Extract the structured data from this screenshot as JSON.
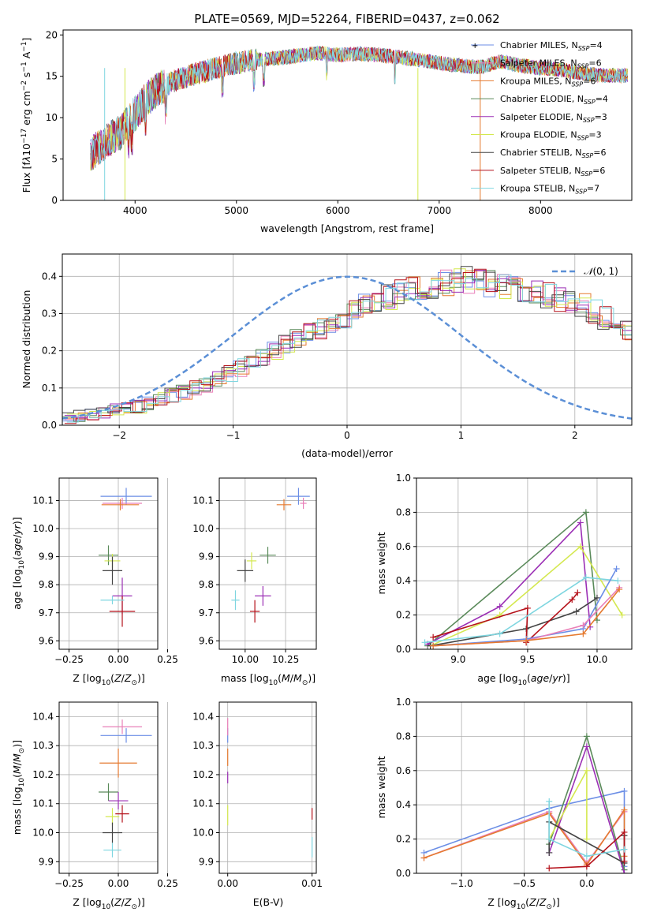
{
  "figure": {
    "title": "PLATE=0569, MJD=52264, FIBERID=0437, z=0.062"
  },
  "chart_data": [
    {
      "type": "line",
      "panel": "spectrum",
      "xlabel": "wavelength [Angstrom, rest frame]",
      "ylabel": "Flux [f_λ 10^-17 erg cm^-2 s^-1 A^-1]",
      "xlim": [
        3290,
        8900
      ],
      "ylim": [
        0,
        20.6
      ],
      "xticks": [
        4000,
        5000,
        6000,
        7000,
        8000
      ],
      "yticks": [
        0,
        5,
        10,
        15,
        20
      ],
      "grid": false,
      "legend_position": "top-right",
      "legend": [
        {
          "label": "Chabrier MILES, N_SSP=4",
          "color": "#6b8ee6"
        },
        {
          "label": "Salpeter MILES, N_SSP=6",
          "color": "#e97fb8"
        },
        {
          "label": "Kroupa MILES, N_SSP=6",
          "color": "#e57a2f"
        },
        {
          "label": "Chabrier ELODIE, N_SSP=4",
          "color": "#5a8a5a"
        },
        {
          "label": "Salpeter ELODIE, N_SSP=3",
          "color": "#9b2fb5"
        },
        {
          "label": "Kroupa ELODIE, N_SSP=3",
          "color": "#d4e84f"
        },
        {
          "label": "Chabrier STELIB, N_SSP=6",
          "color": "#444444"
        },
        {
          "label": "Salpeter STELIB, N_SSP=6",
          "color": "#b5121b"
        },
        {
          "label": "Kroupa STELIB, N_SSP=7",
          "color": "#7fd6e0"
        }
      ],
      "continuum": {
        "x": [
          3560,
          3700,
          3850,
          4000,
          4100,
          4200,
          4400,
          4600,
          4800,
          5000,
          5200,
          5400,
          5600,
          5800,
          6000,
          6200,
          6400,
          6600,
          6800,
          7000,
          7200,
          7400,
          7600,
          7800,
          8000,
          8200,
          8400,
          8600
        ],
        "y": [
          5.5,
          7.0,
          8.2,
          10.5,
          12.0,
          13.3,
          14.5,
          15.3,
          16.0,
          16.6,
          17.0,
          17.2,
          17.5,
          17.8,
          17.6,
          17.7,
          17.6,
          17.3,
          17.0,
          16.6,
          16.3,
          16.1,
          16.8,
          16.3,
          16.0,
          15.8,
          15.4,
          15.1
        ]
      }
    },
    {
      "type": "bar",
      "panel": "residual-histogram",
      "xlabel": "(data-model)/error",
      "ylabel": "Normed distribution",
      "xlim": [
        -2.5,
        2.5
      ],
      "ylim": [
        0,
        0.46
      ],
      "xticks": [
        -2,
        -1,
        0,
        1,
        2
      ],
      "yticks": [
        0.0,
        0.1,
        0.2,
        0.3,
        0.4
      ],
      "grid": true,
      "legend_position": "top-right",
      "legend_label": "N(0,1)",
      "bin_width": 0.1,
      "base": [
        0.02,
        0.025,
        0.03,
        0.035,
        0.04,
        0.045,
        0.05,
        0.06,
        0.07,
        0.08,
        0.09,
        0.1,
        0.11,
        0.125,
        0.14,
        0.155,
        0.17,
        0.185,
        0.2,
        0.215,
        0.23,
        0.245,
        0.26,
        0.275,
        0.29,
        0.305,
        0.32,
        0.335,
        0.345,
        0.355,
        0.365,
        0.37,
        0.375,
        0.38,
        0.385,
        0.39,
        0.385,
        0.38,
        0.375,
        0.37,
        0.365,
        0.36,
        0.35,
        0.34,
        0.33,
        0.32,
        0.305,
        0.29,
        0.275,
        0.26,
        0.245,
        0.23,
        0.215,
        0.2,
        0.185,
        0.17,
        0.155,
        0.14,
        0.125,
        0.11,
        0.1,
        0.09,
        0.08,
        0.07,
        0.06,
        0.055,
        0.05,
        0.045,
        0.04,
        0.035
      ],
      "overlay_series_colors": [
        "#6b8ee6",
        "#e97fb8",
        "#e57a2f",
        "#5a8a5a",
        "#9b2fb5",
        "#d4e84f",
        "#444444",
        "#b5121b",
        "#7fd6e0"
      ]
    },
    {
      "type": "scatter",
      "panel": "Z-age",
      "xlabel": "Z [log10(Z/Z_sun)]",
      "ylabel": "age [log10(age/yr)]",
      "xlim": [
        -0.3,
        0.2
      ],
      "ylim": [
        9.57,
        10.18
      ],
      "xticks": [
        -0.25,
        0.0,
        0.25
      ],
      "yticks": [
        9.6,
        9.7,
        9.8,
        9.9,
        10.0,
        10.1
      ],
      "grid": true,
      "points": [
        {
          "x": 0.04,
          "y": 10.115,
          "xerr": 0.26,
          "yerr": 0.06,
          "color": "#6b8ee6"
        },
        {
          "x": 0.02,
          "y": 10.09,
          "xerr": 0.2,
          "yerr": 0.04,
          "color": "#e97fb8"
        },
        {
          "x": 0.01,
          "y": 10.085,
          "xerr": 0.19,
          "yerr": 0.04,
          "color": "#e57a2f"
        },
        {
          "x": -0.05,
          "y": 9.905,
          "xerr": 0.1,
          "yerr": 0.07,
          "color": "#5a8a5a"
        },
        {
          "x": -0.03,
          "y": 9.885,
          "xerr": 0.08,
          "yerr": 0.05,
          "color": "#d4e84f"
        },
        {
          "x": -0.03,
          "y": 9.85,
          "xerr": 0.1,
          "yerr": 0.1,
          "color": "#444444"
        },
        {
          "x": 0.02,
          "y": 9.76,
          "xerr": 0.1,
          "yerr": 0.13,
          "color": "#9b2fb5"
        },
        {
          "x": 0.02,
          "y": 9.705,
          "xerr": 0.13,
          "yerr": 0.11,
          "color": "#b5121b"
        },
        {
          "x": -0.03,
          "y": 9.745,
          "xerr": 0.12,
          "yerr": 0.03,
          "color": "#7fd6e0"
        }
      ]
    },
    {
      "type": "scatter",
      "panel": "mass-age",
      "xlabel": "mass [log10(M/M_sun)]",
      "ylabel": "",
      "xlim": [
        9.84,
        10.44
      ],
      "ylim": [
        9.57,
        10.18
      ],
      "xticks": [
        10.0,
        10.25
      ],
      "yticks": [
        9.6,
        9.7,
        9.8,
        9.9,
        10.0,
        10.1
      ],
      "grid": true,
      "points": [
        {
          "x": 10.33,
          "y": 10.115,
          "xerr": 0.14,
          "yerr": 0.06,
          "color": "#6b8ee6"
        },
        {
          "x": 10.36,
          "y": 10.09,
          "xerr": 0.04,
          "yerr": 0.04,
          "color": "#e97fb8"
        },
        {
          "x": 10.24,
          "y": 10.085,
          "xerr": 0.09,
          "yerr": 0.04,
          "color": "#e57a2f"
        },
        {
          "x": 10.14,
          "y": 9.905,
          "xerr": 0.1,
          "yerr": 0.06,
          "color": "#5a8a5a"
        },
        {
          "x": 10.04,
          "y": 9.885,
          "xerr": 0.06,
          "yerr": 0.06,
          "color": "#d4e84f"
        },
        {
          "x": 10.0,
          "y": 9.85,
          "xerr": 0.1,
          "yerr": 0.08,
          "color": "#444444"
        },
        {
          "x": 10.11,
          "y": 9.76,
          "xerr": 0.1,
          "yerr": 0.07,
          "color": "#9b2fb5"
        },
        {
          "x": 10.06,
          "y": 9.705,
          "xerr": 0.06,
          "yerr": 0.08,
          "color": "#b5121b"
        },
        {
          "x": 9.94,
          "y": 9.745,
          "xerr": 0.05,
          "yerr": 0.07,
          "color": "#7fd6e0"
        }
      ]
    },
    {
      "type": "line",
      "panel": "age-weight",
      "xlabel": "age [log10(age/yr)]",
      "ylabel": "mass weight",
      "xlim": [
        8.7,
        10.25
      ],
      "ylim": [
        0,
        1
      ],
      "xticks": [
        9.0,
        9.5,
        10.0
      ],
      "yticks": [
        0.0,
        0.2,
        0.4,
        0.6,
        0.8,
        1.0
      ],
      "grid": true,
      "series": [
        {
          "color": "#5a8a5a",
          "x": [
            8.78,
            9.92,
            10.0
          ],
          "y": [
            0.02,
            0.8,
            0.17
          ]
        },
        {
          "color": "#9b2fb5",
          "x": [
            8.78,
            9.3,
            9.88,
            9.95
          ],
          "y": [
            0.03,
            0.25,
            0.74,
            0.13
          ]
        },
        {
          "color": "#d4e84f",
          "x": [
            8.8,
            9.3,
            9.88,
            10.18
          ],
          "y": [
            0.02,
            0.2,
            0.6,
            0.2
          ]
        },
        {
          "color": "#444444",
          "x": [
            8.8,
            9.49,
            9.85,
            10.0
          ],
          "y": [
            0.02,
            0.12,
            0.22,
            0.3
          ]
        },
        {
          "color": "#b5121b",
          "x": [
            8.82,
            9.5,
            9.49,
            9.82,
            9.86
          ],
          "y": [
            0.07,
            0.24,
            0.04,
            0.29,
            0.33
          ]
        },
        {
          "color": "#7fd6e0",
          "x": [
            8.76,
            9.3,
            9.92,
            10.15
          ],
          "y": [
            0.04,
            0.09,
            0.42,
            0.4
          ]
        },
        {
          "color": "#6b8ee6",
          "x": [
            8.82,
            9.49,
            9.9,
            10.14
          ],
          "y": [
            0.02,
            0.06,
            0.12,
            0.47
          ]
        },
        {
          "color": "#e97fb8",
          "x": [
            8.82,
            9.49,
            9.9,
            10.16
          ],
          "y": [
            0.02,
            0.05,
            0.14,
            0.36
          ]
        },
        {
          "color": "#e57a2f",
          "x": [
            8.82,
            9.49,
            9.9,
            10.16
          ],
          "y": [
            0.02,
            0.05,
            0.09,
            0.35
          ]
        }
      ]
    },
    {
      "type": "scatter",
      "panel": "Z-mass",
      "xlabel": "Z [log10(Z/Z_sun)]",
      "ylabel": "mass [log10(M/M_sun)]",
      "xlim": [
        -0.3,
        0.2
      ],
      "ylim": [
        9.86,
        10.45
      ],
      "xticks": [
        -0.25,
        0.0,
        0.25
      ],
      "yticks": [
        9.9,
        10.0,
        10.1,
        10.2,
        10.3,
        10.4
      ],
      "grid": true,
      "points": [
        {
          "x": 0.04,
          "y": 10.335,
          "xerr": 0.26,
          "yerr": 0.05,
          "color": "#6b8ee6"
        },
        {
          "x": 0.02,
          "y": 10.365,
          "xerr": 0.2,
          "yerr": 0.05,
          "color": "#e97fb8"
        },
        {
          "x": 0.0,
          "y": 10.24,
          "xerr": 0.19,
          "yerr": 0.1,
          "color": "#e57a2f"
        },
        {
          "x": -0.05,
          "y": 10.14,
          "xerr": 0.1,
          "yerr": 0.06,
          "color": "#5a8a5a"
        },
        {
          "x": 0.0,
          "y": 10.11,
          "xerr": 0.1,
          "yerr": 0.06,
          "color": "#9b2fb5"
        },
        {
          "x": -0.03,
          "y": 10.055,
          "xerr": 0.07,
          "yerr": 0.06,
          "color": "#d4e84f"
        },
        {
          "x": 0.02,
          "y": 10.065,
          "xerr": 0.07,
          "yerr": 0.06,
          "color": "#b5121b"
        },
        {
          "x": -0.03,
          "y": 10.0,
          "xerr": 0.1,
          "yerr": 0.07,
          "color": "#444444"
        },
        {
          "x": -0.03,
          "y": 9.94,
          "xerr": 0.09,
          "yerr": 0.05,
          "color": "#7fd6e0"
        }
      ]
    },
    {
      "type": "scatter",
      "panel": "EBV-mass",
      "xlabel": "E(B-V)",
      "ylabel": "",
      "xlim": [
        -0.001,
        0.0105
      ],
      "ylim": [
        9.86,
        10.45
      ],
      "xticks": [
        0.0,
        0.01
      ],
      "yticks": [
        9.9,
        10.0,
        10.1,
        10.2,
        10.3,
        10.4
      ],
      "grid": true,
      "points": [
        {
          "x": 0.0,
          "y": 10.335,
          "yerr": 0.05,
          "color": "#6b8ee6"
        },
        {
          "x": 0.0,
          "y": 10.365,
          "yerr": 0.06,
          "color": "#e97fb8"
        },
        {
          "x": 0.0,
          "y": 10.26,
          "yerr": 0.06,
          "color": "#e57a2f"
        },
        {
          "x": 0.0,
          "y": 10.19,
          "yerr": 0.04,
          "color": "#9b2fb5"
        },
        {
          "x": 0.0,
          "y": 10.06,
          "yerr": 0.07,
          "color": "#d4e84f"
        },
        {
          "x": 0.01,
          "y": 10.065,
          "yerr": 0.04,
          "color": "#b5121b"
        },
        {
          "x": 0.01,
          "y": 9.95,
          "yerr": 0.07,
          "color": "#7fd6e0"
        }
      ]
    },
    {
      "type": "line",
      "panel": "Z-weight",
      "xlabel": "Z [log10(Z/Z_sun)]",
      "ylabel": "mass weight",
      "xlim": [
        -1.36,
        0.36
      ],
      "ylim": [
        0,
        1
      ],
      "xticks": [
        -1.0,
        -0.5,
        0.0
      ],
      "yticks": [
        0.0,
        0.2,
        0.4,
        0.6,
        0.8,
        1.0
      ],
      "grid": true,
      "series": [
        {
          "color": "#6b8ee6",
          "x": [
            -1.3,
            -0.3,
            0.3,
            0.3
          ],
          "y": [
            0.12,
            0.38,
            0.48,
            0.04
          ]
        },
        {
          "color": "#e97fb8",
          "x": [
            -1.3,
            -0.3,
            0.0,
            0.3
          ],
          "y": [
            0.09,
            0.36,
            0.06,
            0.36
          ]
        },
        {
          "color": "#e57a2f",
          "x": [
            -1.3,
            -0.3,
            0.0,
            0.3,
            0.3
          ],
          "y": [
            0.09,
            0.35,
            0.05,
            0.37,
            0.1
          ]
        },
        {
          "color": "#5a8a5a",
          "x": [
            -0.3,
            0.0,
            0.3
          ],
          "y": [
            0.17,
            0.8,
            0.02
          ]
        },
        {
          "color": "#9b2fb5",
          "x": [
            -0.3,
            0.0,
            0.3
          ],
          "y": [
            0.12,
            0.74,
            0.0
          ]
        },
        {
          "color": "#d4e84f",
          "x": [
            -0.3,
            0.0,
            0.0
          ],
          "y": [
            0.2,
            0.6,
            0.2
          ]
        },
        {
          "color": "#444444",
          "x": [
            -0.3,
            -0.3,
            0.3,
            0.3
          ],
          "y": [
            0.12,
            0.3,
            0.06,
            0.22
          ]
        },
        {
          "color": "#b5121b",
          "x": [
            -0.3,
            0.0,
            0.3,
            0.3
          ],
          "y": [
            0.03,
            0.04,
            0.24,
            0.07
          ]
        },
        {
          "color": "#7fd6e0",
          "x": [
            -0.3,
            -0.3,
            0.0,
            0.3
          ],
          "y": [
            0.42,
            0.2,
            0.1,
            0.14
          ]
        }
      ]
    }
  ]
}
